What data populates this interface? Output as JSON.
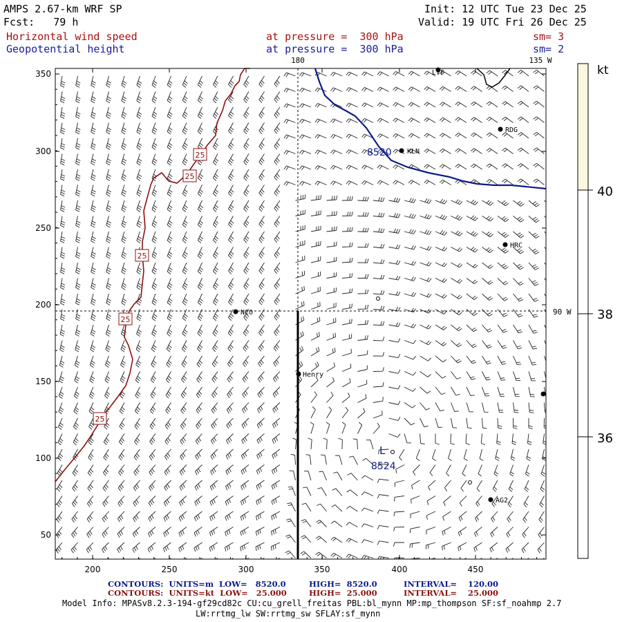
{
  "header": {
    "model_title": "AMPS 2.67-km WRF SP",
    "forecast": "Fcst:   79 h",
    "init": "Init: 12 UTC Tue 23 Dec 25",
    "valid": "Valid: 19 UTC Fri 26 Dec 25",
    "field1": "Horizontal wind speed",
    "field1_level": "at pressure =  300 hPa",
    "field1_sm": "sm= 3",
    "field2": "Geopotential height",
    "field2_level": "at pressure =  300 hPa",
    "field2_sm": "sm= 2"
  },
  "map": {
    "x_ticks": [
      "200",
      "250",
      "300",
      "350",
      "400",
      "450"
    ],
    "y_ticks": [
      "50",
      "100",
      "150",
      "200",
      "250",
      "300",
      "350"
    ],
    "meridian_labels": {
      "top_180": "180",
      "top_135w": "135 W",
      "right_90w": "90 W"
    },
    "stations": [
      {
        "name": "LVF"
      },
      {
        "name": "RDG"
      },
      {
        "name": "KLN"
      },
      {
        "name": "HRC"
      },
      {
        "name": "NCO"
      },
      {
        "name": "Henry"
      },
      {
        "name": "AG2"
      }
    ],
    "height_labels": [
      "8520",
      "8524"
    ],
    "low_marker": "L",
    "speed_label": "25",
    "colors": {
      "height_contour": "#0a1a8a",
      "speed_contour": "#8b1010",
      "barb": "#222222",
      "shade": "#fbf7e0"
    }
  },
  "colorbar": {
    "unit": "kt",
    "labels": [
      "40",
      "38",
      "36"
    ]
  },
  "footer": {
    "line1_a": "CONTOURS:  UNITS=m  LOW=   8520.0",
    "line1_b": "HIGH=  8520.0",
    "line1_c": "INTERVAL=    120.00",
    "line2_a": "CONTOURS:  UNITS=kt  LOW=   25.000",
    "line2_b": "HIGH=  25.000",
    "line2_c": "INTERVAL=    25.000",
    "model_info": "Model Info: MPASv8.2.3-194-gf29cd82c CU:cu_grell_freitas PBL:bl_mynn MP:mp_thompson SF:sf_noahmp 2.7",
    "model_info2": "LW:rrtmg_lw SW:rrtmg_sw SFLAY:sf_mynn"
  }
}
